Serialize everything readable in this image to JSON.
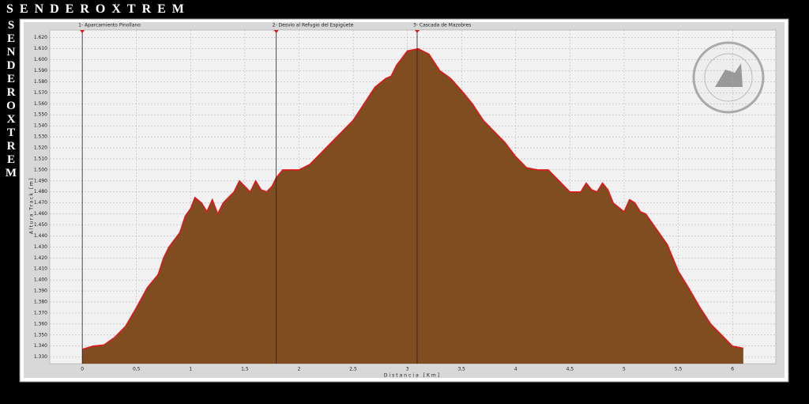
{
  "brand": "SENDEROXTREM",
  "chart_data": {
    "type": "area",
    "xlabel": "Distancia [Km]",
    "ylabel": "Altura Track [m]",
    "x": [
      0,
      0.1,
      0.2,
      0.3,
      0.4,
      0.5,
      0.6,
      0.7,
      0.75,
      0.8,
      0.9,
      0.95,
      1.0,
      1.04,
      1.1,
      1.15,
      1.2,
      1.25,
      1.3,
      1.35,
      1.4,
      1.45,
      1.5,
      1.55,
      1.6,
      1.65,
      1.7,
      1.75,
      1.79,
      1.85,
      2.0,
      2.1,
      2.2,
      2.3,
      2.4,
      2.5,
      2.6,
      2.7,
      2.8,
      2.85,
      2.9,
      3.0,
      3.1,
      3.2,
      3.3,
      3.4,
      3.5,
      3.6,
      3.7,
      3.8,
      3.9,
      4.0,
      4.1,
      4.2,
      4.3,
      4.4,
      4.5,
      4.6,
      4.65,
      4.7,
      4.75,
      4.8,
      4.85,
      4.9,
      5.0,
      5.05,
      5.1,
      5.15,
      5.2,
      5.3,
      5.4,
      5.5,
      5.6,
      5.7,
      5.8,
      5.9,
      6.0,
      6.1
    ],
    "values": [
      1337,
      1340,
      1341,
      1348,
      1358,
      1375,
      1393,
      1405,
      1420,
      1430,
      1443,
      1458,
      1465,
      1475,
      1470,
      1462,
      1473,
      1460,
      1470,
      1475,
      1480,
      1490,
      1485,
      1480,
      1490,
      1482,
      1480,
      1485,
      1493,
      1500,
      1500,
      1505,
      1515,
      1525,
      1535,
      1545,
      1560,
      1575,
      1583,
      1585,
      1595,
      1608,
      1610,
      1605,
      1590,
      1583,
      1572,
      1560,
      1545,
      1535,
      1525,
      1512,
      1502,
      1500,
      1500,
      1490,
      1480,
      1480,
      1488,
      1482,
      1480,
      1488,
      1482,
      1470,
      1462,
      1473,
      1470,
      1462,
      1460,
      1446,
      1432,
      1408,
      1392,
      1375,
      1360,
      1350,
      1340,
      1338
    ],
    "color": "#7f4d1f",
    "line_color": "#e8141c",
    "waypoints": [
      {
        "label": "1- Aparcamiento Pinollano",
        "x": 0
      },
      {
        "label": "2- Desvío al Refugio del Espigüete",
        "x": 1.79
      },
      {
        "label": "3- Cascada de Mazobres",
        "x": 3.09
      }
    ],
    "xlim": [
      -0.3,
      6.4
    ],
    "ylim": [
      1324,
      1627
    ],
    "xticks": [
      0,
      {
        "value": 0.5,
        "label": "0,5"
      },
      1,
      {
        "value": 1.5,
        "label": "1,5"
      },
      2,
      {
        "value": 2.5,
        "label": "2,5"
      },
      3,
      {
        "value": 3.5,
        "label": "3,5"
      },
      4,
      {
        "value": 4.5,
        "label": "4,5"
      },
      5,
      {
        "value": 5.5,
        "label": "5,5"
      },
      6
    ],
    "yticks": [
      {
        "value": 1330,
        "label": "1.330"
      },
      {
        "value": 1340,
        "label": "1.340"
      },
      {
        "value": 1350,
        "label": "1.350"
      },
      {
        "value": 1360,
        "label": "1.360"
      },
      {
        "value": 1370,
        "label": "1.370"
      },
      {
        "value": 1380,
        "label": "1.380"
      },
      {
        "value": 1390,
        "label": "1.390"
      },
      {
        "value": 1400,
        "label": "1.400"
      },
      {
        "value": 1410,
        "label": "1.410"
      },
      {
        "value": 1420,
        "label": "1.420"
      },
      {
        "value": 1430,
        "label": "1.430"
      },
      {
        "value": 1440,
        "label": "1.440"
      },
      {
        "value": 1450,
        "label": "1.450"
      },
      {
        "value": 1460,
        "label": "1.460"
      },
      {
        "value": 1470,
        "label": "1.470"
      },
      {
        "value": 1480,
        "label": "1.480"
      },
      {
        "value": 1490,
        "label": "1.490"
      },
      {
        "value": 1500,
        "label": "1.500"
      },
      {
        "value": 1510,
        "label": "1.510"
      },
      {
        "value": 1520,
        "label": "1.520"
      },
      {
        "value": 1530,
        "label": "1.530"
      },
      {
        "value": 1540,
        "label": "1.540"
      },
      {
        "value": 1550,
        "label": "1.550"
      },
      {
        "value": 1560,
        "label": "1.560"
      },
      {
        "value": 1570,
        "label": "1.570"
      },
      {
        "value": 1580,
        "label": "1.580"
      },
      {
        "value": 1590,
        "label": "1.590"
      },
      {
        "value": 1600,
        "label": "1.600"
      },
      {
        "value": 1610,
        "label": "1.610"
      },
      {
        "value": 1620,
        "label": "1.620"
      }
    ],
    "grid": true
  }
}
